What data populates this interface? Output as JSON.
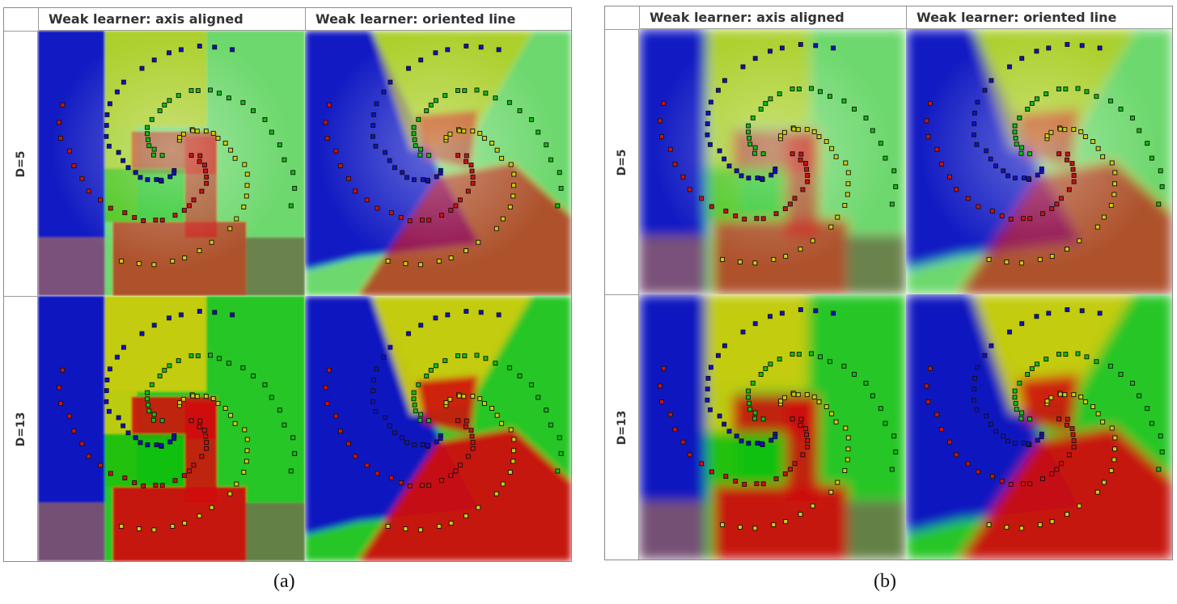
{
  "figures": [
    {
      "id": "a",
      "caption": "(a)",
      "columns": [
        "Weak learner: axis aligned",
        "Weak learner: oriented line"
      ],
      "rows": [
        "D=5",
        "D=13"
      ]
    },
    {
      "id": "b",
      "caption": "(b)",
      "columns": [
        "Weak learner: axis aligned",
        "Weak learner: oriented line"
      ],
      "rows": [
        "D=5",
        "D=13"
      ]
    }
  ],
  "colors": {
    "blue": "#1010c8",
    "yellow": "#cccc10",
    "green": "#10c010",
    "red": "#d01010"
  }
}
